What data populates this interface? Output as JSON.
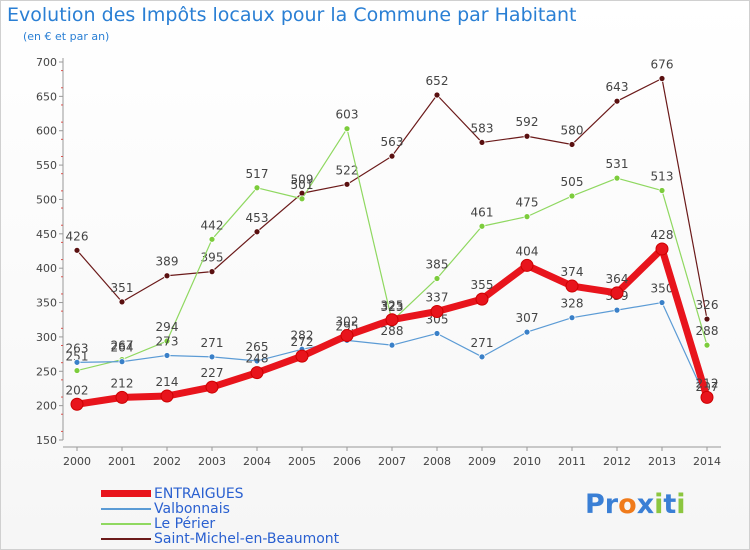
{
  "title": "Evolution des Impôts locaux pour la Commune par Habitant",
  "subtitle": "(en € et par an)",
  "logo": {
    "letters": [
      {
        "ch": "P",
        "color": "#3a7fd5"
      },
      {
        "ch": "r",
        "color": "#3a7fd5"
      },
      {
        "ch": "o",
        "color": "#f07b1b"
      },
      {
        "ch": "x",
        "color": "#3a7fd5"
      },
      {
        "ch": "i",
        "color": "#8cc63f"
      },
      {
        "ch": "t",
        "color": "#3a7fd5"
      },
      {
        "ch": "i",
        "color": "#8cc63f"
      }
    ]
  },
  "chart_data": {
    "type": "line",
    "title": "Evolution des Impôts locaux pour la Commune par Habitant",
    "subtitle": "(en € et par an)",
    "xlabel": "",
    "ylabel": "",
    "x": [
      "2000",
      "2001",
      "2002",
      "2003",
      "2004",
      "2005",
      "2006",
      "2007",
      "2008",
      "2009",
      "2010",
      "2011",
      "2012",
      "2013",
      "2014"
    ],
    "ylim": [
      150,
      700
    ],
    "yticks": [
      150,
      200,
      250,
      300,
      350,
      400,
      450,
      500,
      550,
      600,
      650,
      700
    ],
    "grid": false,
    "legend_position": "bottom-left",
    "series": [
      {
        "name": "Saint-Michel-en-Beaumont",
        "color": "#6b1a1a",
        "marker": "#5a1010",
        "width": 1.2,
        "values": [
          426,
          351,
          389,
          395,
          453,
          509,
          522,
          563,
          652,
          583,
          592,
          580,
          643,
          676,
          326
        ],
        "labels": [
          "426",
          "351",
          "389",
          "395",
          "453",
          "509",
          "522",
          "563",
          "652",
          "583",
          "592",
          "580",
          "643",
          "676",
          "326"
        ]
      },
      {
        "name": "Le Périer",
        "color": "#8fd860",
        "marker": "#7ccc3c",
        "width": 1.2,
        "values": [
          251,
          267,
          294,
          442,
          517,
          501,
          603,
          323,
          385,
          461,
          475,
          505,
          531,
          513,
          288
        ],
        "labels": [
          "251",
          "267",
          "294",
          "442",
          "517",
          "501",
          "603",
          "323",
          "385",
          "461",
          "475",
          "505",
          "531",
          "513",
          "288"
        ]
      },
      {
        "name": "Valbonnais",
        "color": "#5b9bd5",
        "marker": "#3a80c8",
        "width": 1.2,
        "values": [
          263,
          264,
          273,
          271,
          265,
          282,
          295,
          288,
          305,
          271,
          307,
          328,
          339,
          350,
          207
        ],
        "labels": [
          "263",
          "264",
          "273",
          "271",
          "265",
          "282",
          "295",
          "288",
          "305",
          "271",
          "307",
          "328",
          "339",
          "350",
          "207"
        ]
      },
      {
        "name": "ENTRAIGUES",
        "color": "#e8141c",
        "marker": "#e8141c",
        "width": 7,
        "values": [
          202,
          212,
          214,
          227,
          248,
          272,
          302,
          325,
          337,
          355,
          404,
          374,
          364,
          428,
          212
        ],
        "labels": [
          "202",
          "212",
          "214",
          "227",
          "248",
          "272",
          "302",
          "325",
          "337",
          "355",
          "404",
          "374",
          "364",
          "428",
          "212"
        ]
      }
    ]
  }
}
